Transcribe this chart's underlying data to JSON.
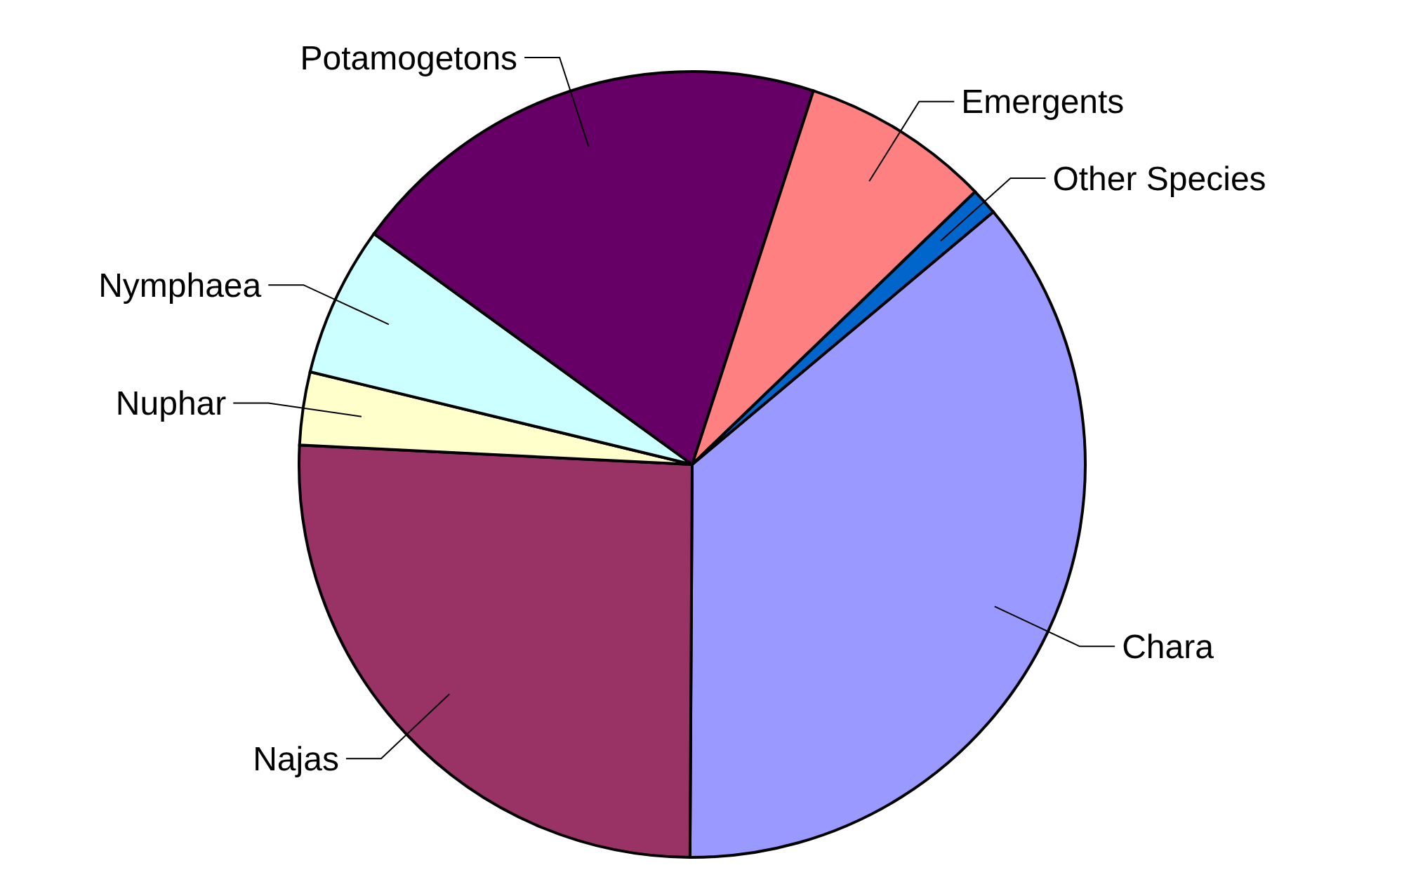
{
  "chart_data": {
    "type": "pie",
    "categories": [
      "Chara",
      "Najas",
      "Nuphar",
      "Nymphaea",
      "Potamogetons",
      "Emergents",
      "Other Species"
    ],
    "values": [
      36.2,
      25.7,
      3,
      6.2,
      20,
      7.8,
      1.1
    ],
    "colors": [
      "#9999ff",
      "#993366",
      "#ffffcc",
      "#ccffff",
      "#660066",
      "#ff8080",
      "#0066cc"
    ],
    "legend": false
  }
}
